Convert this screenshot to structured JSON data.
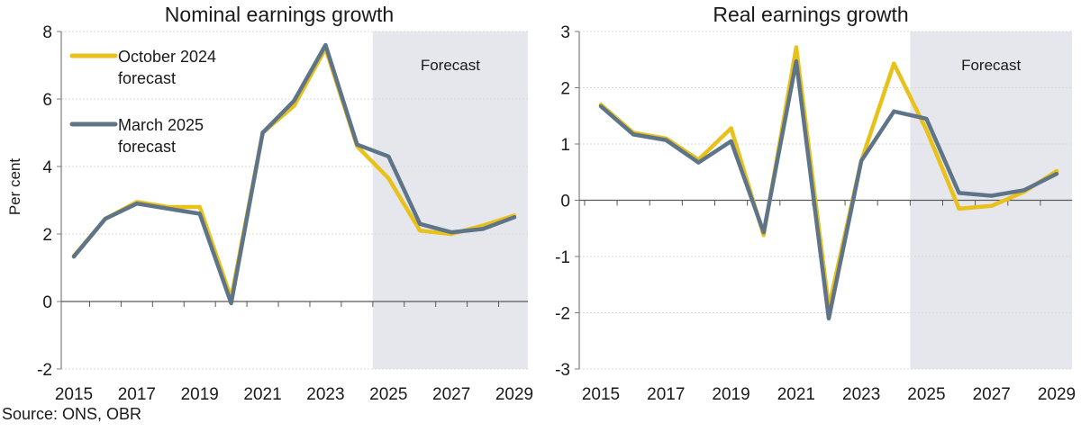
{
  "source": "Source: ONS, OBR",
  "colors": {
    "october_2024": "#E8C11A",
    "march_2025": "#5E7489",
    "forecast_shading": "#E6E7EC",
    "gridline": "#D9D9D9",
    "axis": "#7F7F7F"
  },
  "chart_data": [
    {
      "type": "line",
      "title": "Nominal earnings growth",
      "xlabel": "",
      "ylabel": "Per cent",
      "ylim": [
        -2,
        8
      ],
      "yticks": [
        -2,
        0,
        2,
        4,
        6,
        8
      ],
      "xlim": [
        2015,
        2029
      ],
      "xticks": [
        2015,
        2017,
        2019,
        2021,
        2023,
        2025,
        2027,
        2029
      ],
      "grid": true,
      "forecast_region": {
        "label": "Forecast",
        "start": 2024.5,
        "end": 2029.5
      },
      "legend": {
        "placement": "top-left"
      },
      "x": [
        2015,
        2016,
        2017,
        2018,
        2019,
        2020,
        2021,
        2022,
        2023,
        2024,
        2025,
        2026,
        2027,
        2028,
        2029
      ],
      "series": [
        {
          "name": "October 2024 forecast",
          "legend_lines": [
            "October 2024",
            "forecast"
          ],
          "color_key": "october_2024",
          "values": [
            1.35,
            2.45,
            2.95,
            2.8,
            2.8,
            0.1,
            5.0,
            5.8,
            7.5,
            4.6,
            3.65,
            2.1,
            2.0,
            2.25,
            2.55
          ]
        },
        {
          "name": "March 2025 forecast",
          "legend_lines": [
            "March 2025",
            "forecast"
          ],
          "color_key": "march_2025",
          "values": [
            1.33,
            2.45,
            2.9,
            2.75,
            2.6,
            -0.05,
            5.0,
            5.95,
            7.6,
            4.65,
            4.3,
            2.3,
            2.05,
            2.15,
            2.5
          ]
        }
      ]
    },
    {
      "type": "line",
      "title": "Real earnings growth",
      "xlabel": "",
      "ylabel": "",
      "ylim": [
        -3,
        3
      ],
      "yticks": [
        -3,
        -2,
        -1,
        0,
        1,
        2,
        3
      ],
      "xlim": [
        2015,
        2029
      ],
      "xticks": [
        2015,
        2017,
        2019,
        2021,
        2023,
        2025,
        2027,
        2029
      ],
      "grid": true,
      "forecast_region": {
        "label": "Forecast",
        "start": 2024.5,
        "end": 2029.5
      },
      "legend": null,
      "x": [
        2015,
        2016,
        2017,
        2018,
        2019,
        2020,
        2021,
        2022,
        2023,
        2024,
        2025,
        2026,
        2027,
        2028,
        2029
      ],
      "series": [
        {
          "name": "October 2024 forecast",
          "color_key": "october_2024",
          "values": [
            1.7,
            1.2,
            1.1,
            0.72,
            1.28,
            -0.62,
            2.72,
            -1.9,
            0.7,
            2.43,
            1.25,
            -0.15,
            -0.1,
            0.15,
            0.52
          ]
        },
        {
          "name": "March 2025 forecast",
          "color_key": "march_2025",
          "values": [
            1.67,
            1.17,
            1.07,
            0.67,
            1.05,
            -0.57,
            2.47,
            -2.1,
            0.7,
            1.58,
            1.45,
            0.13,
            0.08,
            0.18,
            0.47
          ]
        }
      ]
    }
  ]
}
